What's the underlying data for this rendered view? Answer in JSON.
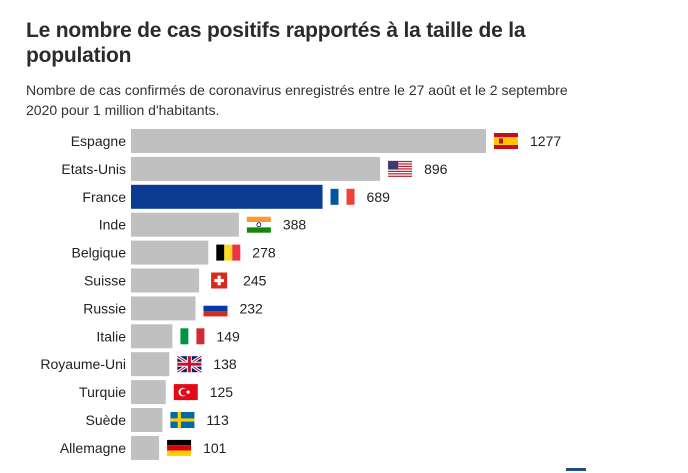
{
  "title": "Le nombre de cas positifs rapportés à la taille de la population",
  "subtitle": "Nombre de cas confirmés de coronavirus enregistrés entre le 27 août et le 2 septembre 2020 pour 1 million d'habitants.",
  "colors": {
    "bar_default": "#c0c0c0",
    "bar_highlight": "#0a3d91",
    "text": "#222222"
  },
  "chart_data": {
    "type": "bar",
    "orientation": "horizontal",
    "title": "Le nombre de cas positifs rapportés à la taille de la population",
    "xlabel": "",
    "ylabel": "",
    "xlim": [
      0,
      1277
    ],
    "grid": false,
    "categories": [
      "Espagne",
      "Etats-Unis",
      "France",
      "Inde",
      "Belgique",
      "Suisse",
      "Russie",
      "Italie",
      "Royaume-Uni",
      "Turquie",
      "Suède",
      "Allemagne"
    ],
    "values": [
      1277,
      896,
      689,
      388,
      278,
      245,
      232,
      149,
      138,
      125,
      113,
      101
    ],
    "flags": [
      "flag-spain",
      "flag-usa",
      "flag-france",
      "flag-india",
      "flag-belgium",
      "flag-switzerland",
      "flag-russia",
      "flag-italy",
      "flag-uk",
      "flag-turkey",
      "flag-sweden",
      "flag-germany"
    ],
    "highlight": "France"
  }
}
